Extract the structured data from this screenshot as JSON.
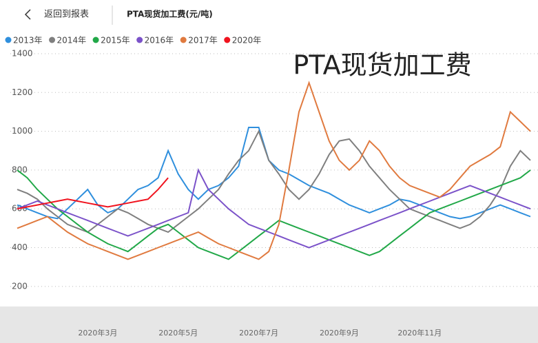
{
  "header": {
    "back": "返回到报表",
    "title": "PTA现货加工费(元/吨)"
  },
  "chart_data": {
    "type": "line",
    "title": "PTA现货加工费",
    "categories": [
      null,
      null,
      null,
      null,
      null,
      null,
      null,
      null,
      "2020年3月",
      null,
      null,
      null,
      null,
      null,
      null,
      null,
      "2020年5月",
      null,
      null,
      null,
      null,
      null,
      null,
      null,
      "2020年7月",
      null,
      null,
      null,
      null,
      null,
      null,
      null,
      "2020年9月",
      null,
      null,
      null,
      null,
      null,
      null,
      null,
      "2020年11月",
      null,
      null,
      null,
      null,
      null,
      null,
      null,
      null,
      null,
      null,
      null
    ],
    "ylim": [
      100,
      1400
    ],
    "yticks": [
      200,
      400,
      600,
      800,
      1000,
      1200,
      1400
    ],
    "grid": true,
    "series": [
      {
        "name": "2013年",
        "color": "#2f8fdd",
        "values": [
          620,
          600,
          580,
          560,
          550,
          600,
          650,
          700,
          620,
          580,
          600,
          650,
          700,
          720,
          760,
          900,
          780,
          700,
          650,
          700,
          720,
          760,
          820,
          1020,
          1020,
          850,
          800,
          780,
          750,
          720,
          700,
          680,
          650,
          620,
          600,
          580,
          600,
          620,
          650,
          640,
          620,
          600,
          580,
          560,
          550,
          560,
          580,
          600,
          620,
          600,
          580,
          560
        ]
      },
      {
        "name": "2014年",
        "color": "#7f7f7f",
        "values": [
          700,
          680,
          650,
          600,
          560,
          520,
          500,
          480,
          520,
          560,
          600,
          580,
          550,
          520,
          500,
          480,
          520,
          560,
          600,
          650,
          700,
          780,
          850,
          900,
          1000,
          850,
          780,
          700,
          650,
          700,
          780,
          880,
          950,
          960,
          900,
          820,
          760,
          700,
          650,
          600,
          580,
          560,
          540,
          520,
          500,
          520,
          560,
          620,
          700,
          820,
          900,
          850
        ]
      },
      {
        "name": "2015年",
        "color": "#21a848",
        "values": [
          800,
          760,
          700,
          650,
          600,
          560,
          520,
          480,
          450,
          420,
          400,
          380,
          420,
          460,
          500,
          520,
          480,
          440,
          400,
          380,
          360,
          340,
          380,
          420,
          460,
          500,
          540,
          520,
          500,
          480,
          460,
          440,
          420,
          400,
          380,
          360,
          380,
          420,
          460,
          500,
          540,
          580,
          600,
          620,
          640,
          660,
          680,
          700,
          720,
          740,
          760,
          800
        ]
      },
      {
        "name": "2016年",
        "color": "#7b52c9",
        "values": [
          600,
          620,
          640,
          620,
          600,
          580,
          560,
          540,
          520,
          500,
          480,
          460,
          480,
          500,
          520,
          540,
          560,
          580,
          800,
          700,
          650,
          600,
          560,
          520,
          500,
          480,
          460,
          440,
          420,
          400,
          420,
          440,
          460,
          480,
          500,
          520,
          540,
          560,
          580,
          600,
          620,
          640,
          660,
          680,
          700,
          720,
          700,
          680,
          660,
          640,
          620,
          600
        ]
      },
      {
        "name": "2017年",
        "color": "#e07a3f",
        "values": [
          500,
          520,
          540,
          560,
          520,
          480,
          450,
          420,
          400,
          380,
          360,
          340,
          360,
          380,
          400,
          420,
          440,
          460,
          480,
          450,
          420,
          400,
          380,
          360,
          340,
          380,
          520,
          800,
          1100,
          1250,
          1100,
          950,
          850,
          800,
          850,
          950,
          900,
          820,
          760,
          720,
          700,
          680,
          660,
          700,
          760,
          820,
          850,
          880,
          920,
          1100,
          1050,
          1000
        ]
      },
      {
        "name": "2020年",
        "color": "#f0131e",
        "values": [
          600,
          610,
          620,
          630,
          640,
          650,
          640,
          630,
          620,
          610,
          620,
          630,
          640,
          650,
          700,
          760,
          null,
          null,
          null,
          null,
          null,
          null,
          null,
          null,
          null,
          null,
          null,
          null,
          null,
          null,
          null,
          null,
          null,
          null,
          null,
          null,
          null,
          null,
          null,
          null,
          null,
          null,
          null,
          null,
          null,
          null,
          null,
          null,
          null,
          null,
          null,
          null
        ]
      }
    ]
  }
}
